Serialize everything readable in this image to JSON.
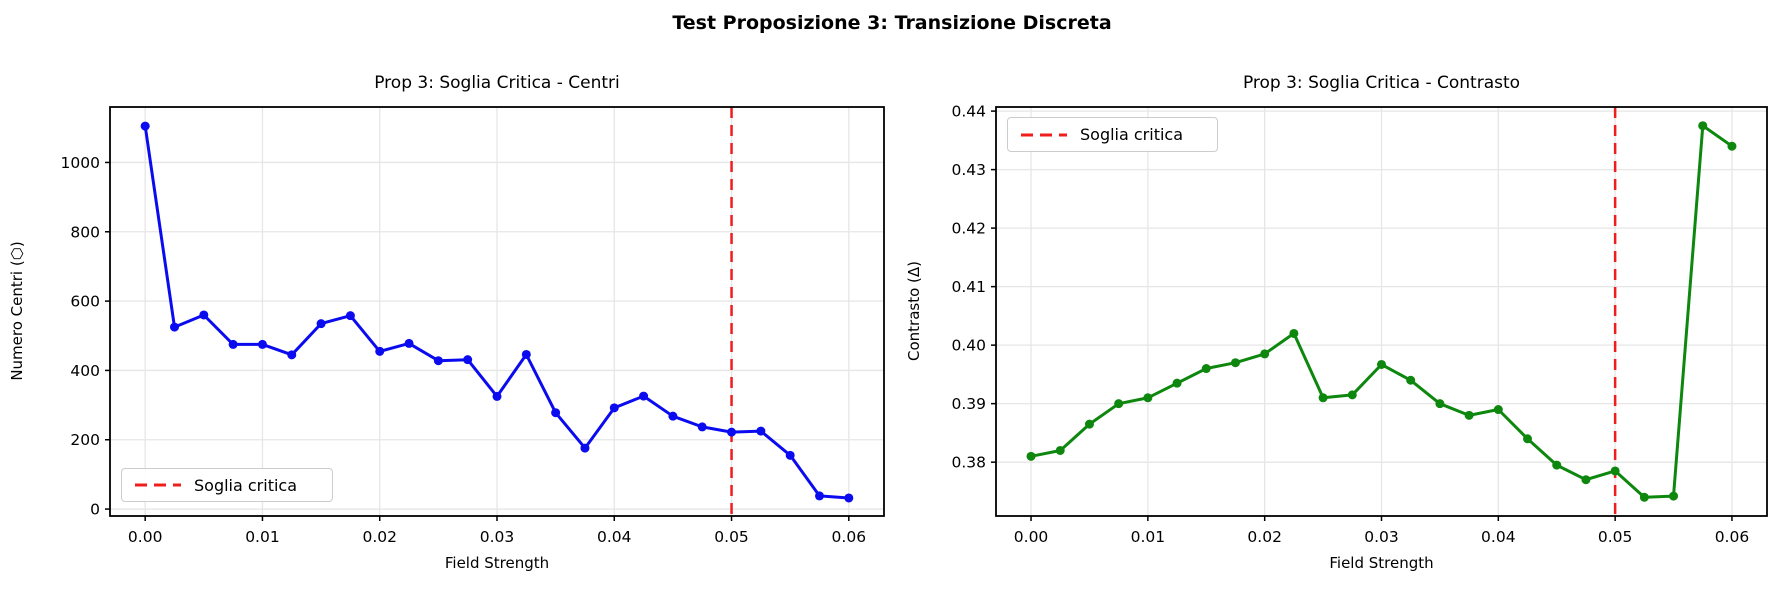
{
  "suptitle": "Test Proposizione 3: Transizione Discreta",
  "chart_data": [
    {
      "type": "line",
      "title": "Prop 3: Soglia Critica - Centri",
      "xlabel": "Field Strength",
      "ylabel": "Numero Centri (⬡)",
      "legend_label": "Soglia critica",
      "legend_position": "lower-left",
      "line_color": "#0b0bf0",
      "marker": "circle",
      "grid": true,
      "threshold": {
        "x": 0.05,
        "color": "#f01d1d",
        "style": "dashed",
        "label": "Soglia critica"
      },
      "x": [
        0.0,
        0.0025,
        0.005,
        0.0075,
        0.01,
        0.0125,
        0.015,
        0.0175,
        0.02,
        0.0225,
        0.025,
        0.0275,
        0.03,
        0.0325,
        0.035,
        0.0375,
        0.04,
        0.0425,
        0.045,
        0.0475,
        0.05,
        0.0525,
        0.055,
        0.0575,
        0.06
      ],
      "y": [
        1105,
        525,
        560,
        475,
        475,
        445,
        535,
        558,
        455,
        478,
        428,
        431,
        325,
        446,
        278,
        176,
        292,
        326,
        268,
        237,
        222,
        225,
        155,
        38,
        32
      ],
      "xlim": [
        -0.003,
        0.063
      ],
      "ylim": [
        -20,
        1160
      ],
      "xticks": [
        0.0,
        0.01,
        0.02,
        0.03,
        0.04,
        0.05,
        0.06
      ],
      "xtick_labels": [
        "0.00",
        "0.01",
        "0.02",
        "0.03",
        "0.04",
        "0.05",
        "0.06"
      ],
      "yticks": [
        0,
        200,
        400,
        600,
        800,
        1000
      ],
      "ytick_labels": [
        "0",
        "200",
        "400",
        "600",
        "800",
        "1000"
      ]
    },
    {
      "type": "line",
      "title": "Prop 3: Soglia Critica - Contrasto",
      "xlabel": "Field Strength",
      "ylabel": "Contrasto (Δ)",
      "legend_label": "Soglia critica",
      "legend_position": "upper-left",
      "line_color": "#0e870e",
      "marker": "circle",
      "grid": true,
      "threshold": {
        "x": 0.05,
        "color": "#f01d1d",
        "style": "dashed",
        "label": "Soglia critica"
      },
      "x": [
        0.0,
        0.0025,
        0.005,
        0.0075,
        0.01,
        0.0125,
        0.015,
        0.0175,
        0.02,
        0.0225,
        0.025,
        0.0275,
        0.03,
        0.0325,
        0.035,
        0.0375,
        0.04,
        0.0425,
        0.045,
        0.0475,
        0.05,
        0.0525,
        0.055,
        0.0575,
        0.06
      ],
      "y": [
        0.381,
        0.382,
        0.3865,
        0.39,
        0.391,
        0.3935,
        0.396,
        0.397,
        0.3985,
        0.402,
        0.391,
        0.3915,
        0.3967,
        0.394,
        0.39,
        0.388,
        0.389,
        0.384,
        0.3795,
        0.377,
        0.3785,
        0.374,
        0.3742,
        0.4375,
        0.434
      ],
      "xlim": [
        -0.003,
        0.063
      ],
      "ylim": [
        0.3708,
        0.4407
      ],
      "xticks": [
        0.0,
        0.01,
        0.02,
        0.03,
        0.04,
        0.05,
        0.06
      ],
      "xtick_labels": [
        "0.00",
        "0.01",
        "0.02",
        "0.03",
        "0.04",
        "0.05",
        "0.06"
      ],
      "yticks": [
        0.38,
        0.39,
        0.4,
        0.41,
        0.42,
        0.43,
        0.44
      ],
      "ytick_labels": [
        "0.38",
        "0.39",
        "0.40",
        "0.41",
        "0.42",
        "0.43",
        "0.44"
      ]
    }
  ],
  "style": {
    "grid_color": "#e6e6e6",
    "spine_color": "#000000",
    "background": "#ffffff"
  }
}
